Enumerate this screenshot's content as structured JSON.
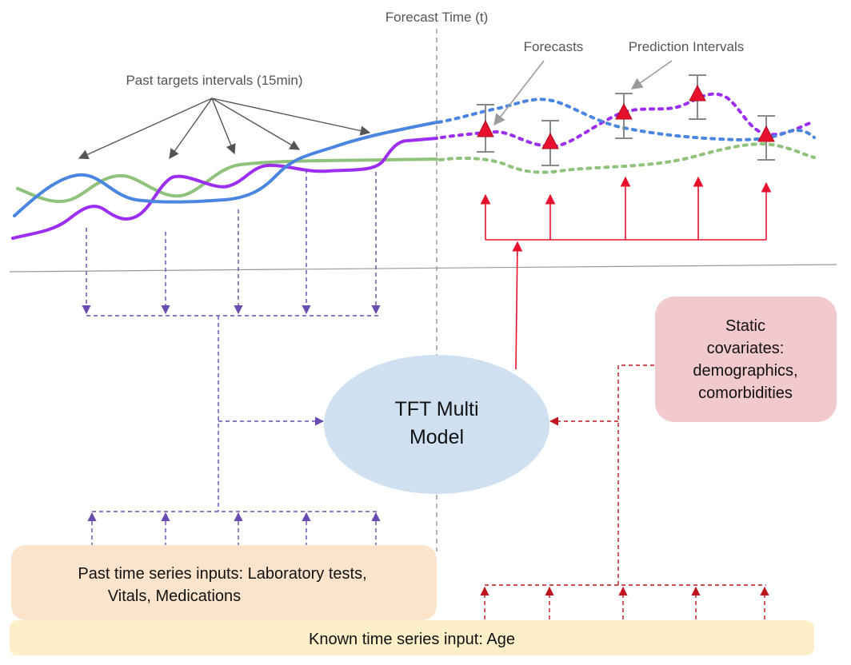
{
  "labels": {
    "forecast_time": "Forecast Time (t)",
    "forecasts": "Forecasts",
    "prediction_intervals": "Prediction Intervals",
    "past_targets": "Past targets intervals (15min)"
  },
  "model": {
    "line1": "TFT Multi",
    "line2": "Model"
  },
  "static_box": {
    "line1": "Static",
    "line2": "covariates:",
    "line3": "demographics,",
    "line4": "comorbidities"
  },
  "past_inputs_box": {
    "line1": "Past time series inputs: Laboratory tests,",
    "line2": "Vitals, Medications"
  },
  "known_input_box": {
    "text": "Known time series input: Age"
  },
  "colors": {
    "blue_series": "#4a86e0",
    "purple_series": "#9b2ef0",
    "green_series": "#8fc27a",
    "forecast_marker": "#e8112d",
    "model_fill": "#cfe0f1",
    "static_fill": "#f2c9cc",
    "past_inputs_fill": "#fbe3cc",
    "known_input_fill": "#fdf0c8",
    "past_arrow": "#6a4bb0",
    "static_arrow": "#d0202a",
    "guide_gray": "#9a9a9a"
  }
}
